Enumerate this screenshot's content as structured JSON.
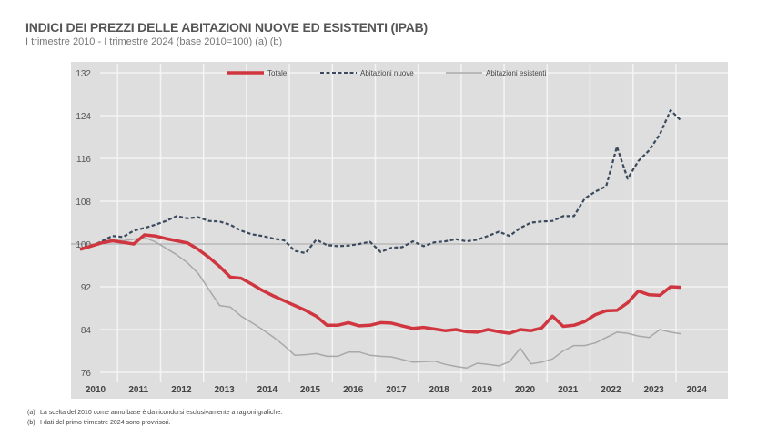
{
  "chart_data": {
    "type": "line",
    "title": "INDICI DEI PREZZI DELLE ABITAZIONI NUOVE ED ESISTENTI (IPAB)",
    "subtitle": "I trimestre 2010 - I trimestre 2024 (base 2010=100) (a) (b)",
    "xlabel": "",
    "ylabel": "",
    "ylim": [
      76,
      132
    ],
    "yticks": [
      "132",
      "124",
      "116",
      "108",
      "100",
      "92",
      "84",
      "76"
    ],
    "ytick_values": [
      132,
      124,
      116,
      108,
      100,
      92,
      84,
      76
    ],
    "xticks": [
      "2010",
      "2011",
      "2012",
      "2013",
      "2014",
      "2015",
      "2016",
      "2017",
      "2018",
      "2019",
      "2020",
      "2021",
      "2022",
      "2023",
      "2024"
    ],
    "x_start": "2010 Q1",
    "x_end": "2024 Q1",
    "frequency": "quarterly",
    "grid": true,
    "legend": "top-center",
    "reference_line": 100,
    "series": [
      {
        "name": "Totale",
        "color": "#d0363f",
        "style": "solid-thick",
        "values": [
          99.0,
          99.6,
          100.2,
          100.6,
          100.3,
          100.0,
          101.7,
          101.5,
          101.0,
          100.6,
          100.2,
          99.0,
          97.5,
          95.8,
          93.8,
          93.6,
          92.5,
          91.3,
          90.3,
          89.4,
          88.5,
          87.6,
          86.5,
          84.8,
          84.8,
          85.3,
          84.7,
          84.8,
          85.3,
          85.2,
          84.7,
          84.2,
          84.4,
          84.1,
          83.8,
          84.0,
          83.6,
          83.5,
          84.0,
          83.6,
          83.3,
          84.0,
          83.8,
          84.3,
          86.5,
          84.6,
          84.8,
          85.5,
          86.8,
          87.5,
          87.6,
          89.0,
          91.2,
          90.5,
          90.4,
          92.0,
          91.9
        ]
      },
      {
        "name": "Abitazioni nuove",
        "color": "#3a4a5c",
        "style": "dashed",
        "values": [
          99.0,
          99.5,
          100.5,
          101.5,
          101.3,
          102.5,
          103.0,
          103.6,
          104.3,
          105.2,
          104.8,
          105.0,
          104.3,
          104.2,
          103.6,
          102.5,
          101.8,
          101.5,
          101.0,
          100.7,
          98.7,
          98.3,
          100.8,
          99.8,
          99.6,
          99.7,
          100.0,
          100.4,
          98.5,
          99.3,
          99.4,
          100.5,
          99.6,
          100.3,
          100.5,
          100.9,
          100.5,
          100.8,
          101.5,
          102.3,
          101.5,
          103.0,
          104.0,
          104.2,
          104.3,
          105.2,
          105.2,
          108.5,
          109.8,
          110.8,
          118.2,
          112.2,
          115.5,
          117.5,
          120.5,
          125.0,
          123.0
        ]
      },
      {
        "name": "Abitazioni esistenti",
        "color": "#a8a8a8",
        "style": "solid-thin",
        "values": [
          99.0,
          99.7,
          100.4,
          100.8,
          100.6,
          100.9,
          101.2,
          100.4,
          99.2,
          98.0,
          96.5,
          94.5,
          91.5,
          88.5,
          88.2,
          86.5,
          85.3,
          84.0,
          82.6,
          81.0,
          79.2,
          79.3,
          79.5,
          79.0,
          79.0,
          79.8,
          79.8,
          79.2,
          79.0,
          78.9,
          78.4,
          77.9,
          78.0,
          78.1,
          77.5,
          77.1,
          76.8,
          77.7,
          77.5,
          77.2,
          78.0,
          80.5,
          77.6,
          77.9,
          78.5,
          80.0,
          81.0,
          81.0,
          81.5,
          82.5,
          83.5,
          83.3,
          82.8,
          82.5,
          84.0,
          83.5,
          83.2
        ]
      }
    ]
  },
  "footnotes": [
    {
      "mark": "(a)",
      "text": "La scelta del 2010 come anno base è da ricondursi esclusivamente a ragioni grafiche."
    },
    {
      "mark": "(b)",
      "text": "I dati del primo trimestre 2024 sono provvisori."
    }
  ]
}
